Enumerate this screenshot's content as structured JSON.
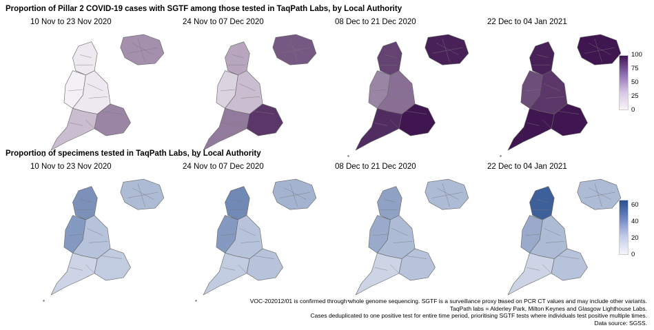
{
  "top_section": {
    "title": "Proportion of Pillar 2 COVID-19 cases with SGTF among those tested in TaqPath Labs, by Local Authority",
    "panels": [
      {
        "title": "10 Nov to 23 Nov 2020",
        "intensity": [
          0.05,
          0.45,
          0.02,
          0.05,
          0.5,
          0.25
        ]
      },
      {
        "title": "24 Nov to 07 Dec 2020",
        "intensity": [
          0.35,
          0.7,
          0.15,
          0.25,
          0.85,
          0.55
        ]
      },
      {
        "title": "08 Dec to 21 Dec 2020",
        "intensity": [
          0.8,
          0.95,
          0.5,
          0.6,
          1.0,
          0.9
        ]
      },
      {
        "title": "22 Dec to 04 Jan 2021",
        "intensity": [
          0.95,
          1.0,
          0.75,
          0.85,
          1.0,
          1.0
        ]
      }
    ],
    "legend": {
      "ticks": [
        "100",
        "75",
        "50",
        "25",
        "0"
      ],
      "color_low": "#f7f4f9",
      "color_high": "#3f1650"
    }
  },
  "bottom_section": {
    "title": "Proportion of specimens tested in TaqPath Labs, by Local Authority",
    "panels": [
      {
        "title": "10 Nov to 23 Nov 2020",
        "intensity": [
          0.6,
          0.35,
          0.55,
          0.3,
          0.25,
          0.2
        ]
      },
      {
        "title": "24 Nov to 07 Dec 2020",
        "intensity": [
          0.65,
          0.4,
          0.55,
          0.3,
          0.3,
          0.25
        ]
      },
      {
        "title": "08 Dec to 21 Dec 2020",
        "intensity": [
          0.5,
          0.35,
          0.45,
          0.35,
          0.3,
          0.2
        ]
      },
      {
        "title": "22 Dec to 04 Jan 2021",
        "intensity": [
          0.9,
          0.35,
          0.45,
          0.35,
          0.3,
          0.2
        ]
      }
    ],
    "legend": {
      "ticks": [
        "60",
        "40",
        "20",
        "0"
      ],
      "color_low": "#f4f5fb",
      "color_high": "#2a4f8f"
    }
  },
  "footnotes": [
    "VOC-202012/01 is confirmed through whole genome sequencing. SGTF is a surveillance proxy based on PCR CT values and may include other variants.",
    "TaqPath labs = Alderley Park, Milton Keynes and Glasgow Lighthouse Labs.",
    "Cases deduplicated to one positive test for entire time period, prioritising SGTF tests where individuals test positive multiple times.",
    "Data source: SGSS."
  ]
}
